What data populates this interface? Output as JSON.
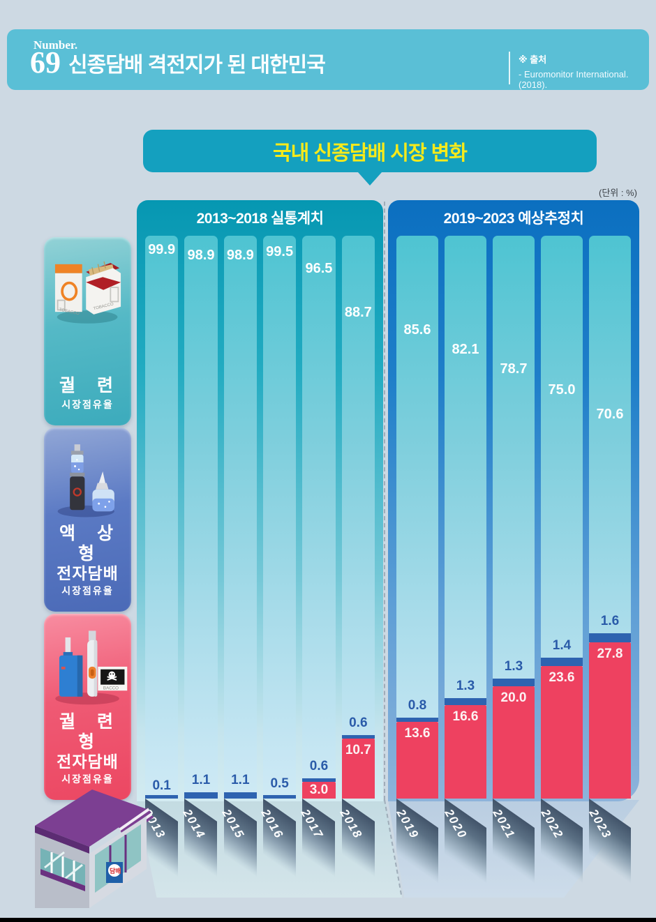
{
  "header": {
    "number_label": "Number.",
    "number": "69",
    "title": "신종담배 격전지가 된 대한민국",
    "source_label": "※ 출처",
    "source": "- Euromonitor International. (2018)."
  },
  "bubble": {
    "title": "국내 신종담배 시장 변화"
  },
  "unit_label": "(단위 : %)",
  "legend": {
    "cards": [
      {
        "title": "궐 련",
        "subtitle": "시장점유율",
        "icon": "cigarette-packs",
        "icon_text": "TOBACCO",
        "color": "#3cabbc"
      },
      {
        "title": "액 상 형",
        "title2": "전자담배",
        "subtitle": "시장점유율",
        "icon": "liquid-ecigarette",
        "color": "#4b6ab7"
      },
      {
        "title": "궐 련 형",
        "title2": "전자담배",
        "subtitle": "시장점유율",
        "icon": "heated-tobacco-device",
        "icon_text": "BACCO",
        "color": "#ec4762"
      }
    ]
  },
  "store": {
    "sign": "담배"
  },
  "chart_data": {
    "type": "bar",
    "stacked": true,
    "unit": "%",
    "ylim": [
      0,
      100
    ],
    "grid": false,
    "legend_position": "left",
    "title": "국내 신종담배 시장 변화",
    "categories": [
      "2013",
      "2014",
      "2015",
      "2016",
      "2017",
      "2018",
      "2019",
      "2020",
      "2021",
      "2022",
      "2023"
    ],
    "sections": [
      {
        "label": "2013~2018 실통계치",
        "from": 0,
        "to": 5
      },
      {
        "label": "2019~2023 예상추정치",
        "from": 6,
        "to": 10
      }
    ],
    "series": [
      {
        "name": "궐련 시장점유율",
        "color": "#a9dcea",
        "values": [
          "99.9",
          "98.9",
          "98.9",
          "99.5",
          "96.5",
          "88.7",
          "85.6",
          "82.1",
          "78.7",
          "75.0",
          "70.6"
        ]
      },
      {
        "name": "액상형 전자담배 시장점유율",
        "color": "#2e63b0",
        "values": [
          "0.1",
          "1.1",
          "1.1",
          "0.5",
          "0.6",
          "0.6",
          "0.8",
          "1.3",
          "1.3",
          "1.4",
          "1.6"
        ]
      },
      {
        "name": "궐련형 전자담배 시장점유율",
        "color": "#ee4160",
        "values": [
          null,
          null,
          null,
          null,
          "3.0",
          "10.7",
          "13.6",
          "16.6",
          "20.0",
          "23.6",
          "27.8"
        ]
      }
    ]
  }
}
